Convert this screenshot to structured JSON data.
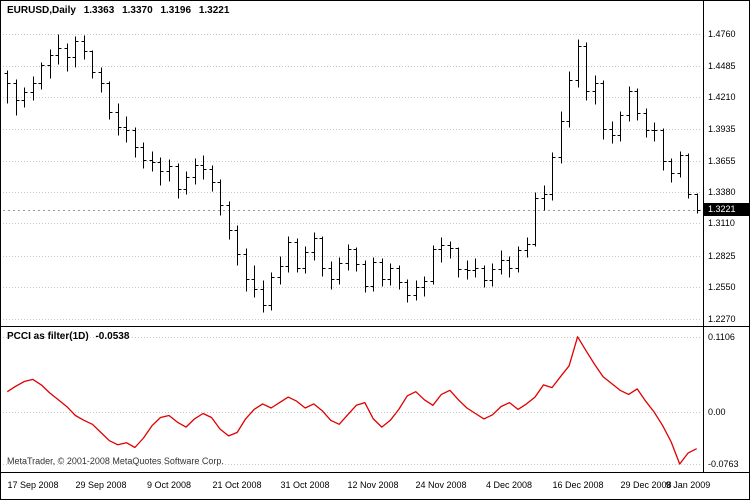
{
  "header": {
    "symbol_period": "EURUSD,Daily",
    "open": "1.3363",
    "high": "1.3370",
    "low": "1.3196",
    "close": "1.3221"
  },
  "indicator": {
    "name": "PCCI as filter(1D)",
    "value": "-0.0538",
    "axis_labels": [
      "0.1106",
      "0.00",
      "-0.0763"
    ]
  },
  "price_axis": {
    "labels": [
      "1.4760",
      "1.4485",
      "1.4210",
      "1.3935",
      "1.3655",
      "1.3380",
      "1.3110",
      "1.2825",
      "1.2550",
      "1.2270"
    ],
    "current": "1.3221"
  },
  "watermark": "MetaTrader, © 2001-2008 MetaQuotes Software Corp.",
  "colors": {
    "bar": "#000000",
    "indicator_line": "#e00000",
    "grid": "#c8c8c8",
    "separator": "#000000",
    "current_price_line": "#999999",
    "price_tag_bg": "#000000",
    "price_tag_fg": "#ffffff",
    "background": "#ffffff"
  },
  "chart_data": [
    {
      "panel": "price",
      "type": "ohlc-bars",
      "symbol": "EURUSD",
      "timeframe": "Daily",
      "grid": true,
      "legend": false,
      "ylim": [
        1.221,
        1.504
      ],
      "y_ticks": [
        1.476,
        1.4485,
        1.421,
        1.3935,
        1.3655,
        1.338,
        1.311,
        1.2825,
        1.255,
        1.227
      ],
      "current_price": 1.3221,
      "x_tick_labels": [
        "17 Sep 2008",
        "29 Sep 2008",
        "9 Oct 2008",
        "21 Oct 2008",
        "31 Oct 2008",
        "12 Nov 2008",
        "24 Nov 2008",
        "4 Dec 2008",
        "16 Dec 2008",
        "29 Dec 2008",
        "9 Jan 2009"
      ],
      "x_tick_indices": [
        3,
        11,
        19,
        27,
        35,
        43,
        51,
        59,
        67,
        75,
        80
      ],
      "bars": [
        [
          1.442,
          1.445,
          1.416,
          1.433
        ],
        [
          1.433,
          1.437,
          1.405,
          1.418
        ],
        [
          1.418,
          1.43,
          1.412,
          1.425
        ],
        [
          1.425,
          1.439,
          1.418,
          1.433
        ],
        [
          1.433,
          1.452,
          1.428,
          1.449
        ],
        [
          1.449,
          1.463,
          1.438,
          1.458
        ],
        [
          1.458,
          1.476,
          1.45,
          1.464
        ],
        [
          1.464,
          1.468,
          1.444,
          1.456
        ],
        [
          1.456,
          1.474,
          1.447,
          1.47
        ],
        [
          1.47,
          1.475,
          1.454,
          1.461
        ],
        [
          1.461,
          1.462,
          1.438,
          1.443
        ],
        [
          1.443,
          1.447,
          1.425,
          1.433
        ],
        [
          1.433,
          1.435,
          1.402,
          1.408
        ],
        [
          1.408,
          1.416,
          1.388,
          1.395
        ],
        [
          1.395,
          1.404,
          1.382,
          1.392
        ],
        [
          1.392,
          1.395,
          1.369,
          1.377
        ],
        [
          1.377,
          1.382,
          1.359,
          1.366
        ],
        [
          1.366,
          1.374,
          1.356,
          1.364
        ],
        [
          1.364,
          1.369,
          1.344,
          1.356
        ],
        [
          1.356,
          1.367,
          1.348,
          1.361
        ],
        [
          1.361,
          1.363,
          1.333,
          1.341
        ],
        [
          1.341,
          1.356,
          1.336,
          1.351
        ],
        [
          1.351,
          1.368,
          1.345,
          1.362
        ],
        [
          1.362,
          1.37,
          1.349,
          1.358
        ],
        [
          1.358,
          1.362,
          1.339,
          1.347
        ],
        [
          1.347,
          1.349,
          1.318,
          1.327
        ],
        [
          1.327,
          1.33,
          1.297,
          1.305
        ],
        [
          1.305,
          1.309,
          1.274,
          1.284
        ],
        [
          1.284,
          1.289,
          1.252,
          1.262
        ],
        [
          1.262,
          1.274,
          1.246,
          1.253
        ],
        [
          1.253,
          1.261,
          1.233,
          1.239
        ],
        [
          1.239,
          1.268,
          1.235,
          1.264
        ],
        [
          1.264,
          1.282,
          1.258,
          1.273
        ],
        [
          1.273,
          1.3,
          1.268,
          1.294
        ],
        [
          1.294,
          1.298,
          1.268,
          1.272
        ],
        [
          1.272,
          1.291,
          1.267,
          1.286
        ],
        [
          1.286,
          1.303,
          1.279,
          1.298
        ],
        [
          1.298,
          1.3,
          1.265,
          1.272
        ],
        [
          1.272,
          1.278,
          1.253,
          1.262
        ],
        [
          1.262,
          1.281,
          1.258,
          1.276
        ],
        [
          1.276,
          1.293,
          1.27,
          1.288
        ],
        [
          1.288,
          1.29,
          1.269,
          1.275
        ],
        [
          1.275,
          1.279,
          1.251,
          1.256
        ],
        [
          1.256,
          1.281,
          1.252,
          1.277
        ],
        [
          1.277,
          1.28,
          1.256,
          1.262
        ],
        [
          1.262,
          1.276,
          1.257,
          1.272
        ],
        [
          1.272,
          1.274,
          1.253,
          1.259
        ],
        [
          1.259,
          1.262,
          1.242,
          1.248
        ],
        [
          1.248,
          1.261,
          1.244,
          1.255
        ],
        [
          1.255,
          1.265,
          1.247,
          1.26
        ],
        [
          1.26,
          1.292,
          1.258,
          1.288
        ],
        [
          1.288,
          1.299,
          1.277,
          1.292
        ],
        [
          1.292,
          1.295,
          1.28,
          1.289
        ],
        [
          1.289,
          1.29,
          1.264,
          1.271
        ],
        [
          1.271,
          1.279,
          1.262,
          1.27
        ],
        [
          1.27,
          1.28,
          1.264,
          1.272
        ],
        [
          1.272,
          1.274,
          1.255,
          1.261
        ],
        [
          1.261,
          1.276,
          1.256,
          1.271
        ],
        [
          1.271,
          1.287,
          1.266,
          1.279
        ],
        [
          1.279,
          1.282,
          1.264,
          1.272
        ],
        [
          1.272,
          1.291,
          1.268,
          1.287
        ],
        [
          1.287,
          1.299,
          1.281,
          1.293
        ],
        [
          1.293,
          1.338,
          1.291,
          1.333
        ],
        [
          1.333,
          1.344,
          1.322,
          1.336
        ],
        [
          1.336,
          1.373,
          1.331,
          1.369
        ],
        [
          1.369,
          1.409,
          1.363,
          1.4
        ],
        [
          1.4,
          1.444,
          1.395,
          1.436
        ],
        [
          1.436,
          1.4719,
          1.43,
          1.466
        ],
        [
          1.466,
          1.469,
          1.418,
          1.426
        ],
        [
          1.426,
          1.44,
          1.415,
          1.433
        ],
        [
          1.433,
          1.436,
          1.384,
          1.393
        ],
        [
          1.393,
          1.4,
          1.381,
          1.388
        ],
        [
          1.388,
          1.409,
          1.383,
          1.405
        ],
        [
          1.405,
          1.431,
          1.4,
          1.426
        ],
        [
          1.426,
          1.429,
          1.401,
          1.407
        ],
        [
          1.407,
          1.411,
          1.386,
          1.392
        ],
        [
          1.392,
          1.399,
          1.383,
          1.392
        ],
        [
          1.392,
          1.394,
          1.357,
          1.365
        ],
        [
          1.365,
          1.368,
          1.347,
          1.355
        ],
        [
          1.355,
          1.374,
          1.351,
          1.37
        ],
        [
          1.37,
          1.372,
          1.333,
          1.3365
        ],
        [
          1.3363,
          1.337,
          1.3196,
          1.3221
        ]
      ]
    },
    {
      "panel": "indicator",
      "type": "line",
      "title": "PCCI as filter(1D)",
      "current_value": -0.0538,
      "grid": true,
      "legend": false,
      "ylim": [
        -0.088,
        0.125
      ],
      "y_ticks": [
        0.1106,
        0,
        -0.0763
      ],
      "values": [
        0.03,
        0.038,
        0.045,
        0.048,
        0.04,
        0.028,
        0.018,
        0.008,
        -0.005,
        -0.012,
        -0.018,
        -0.03,
        -0.042,
        -0.048,
        -0.045,
        -0.052,
        -0.038,
        -0.02,
        -0.008,
        -0.005,
        -0.015,
        -0.022,
        -0.01,
        -0.002,
        -0.008,
        -0.025,
        -0.035,
        -0.03,
        -0.01,
        0.004,
        0.012,
        0.006,
        0.014,
        0.022,
        0.016,
        0.006,
        0.012,
        0.002,
        -0.012,
        -0.018,
        -0.004,
        0.01,
        0.014,
        -0.01,
        -0.022,
        -0.012,
        0.004,
        0.024,
        0.03,
        0.018,
        0.01,
        0.026,
        0.032,
        0.018,
        0.006,
        -0.002,
        -0.01,
        -0.004,
        0.008,
        0.014,
        0.004,
        0.012,
        0.022,
        0.04,
        0.036,
        0.052,
        0.068,
        0.1106,
        0.09,
        0.07,
        0.052,
        0.042,
        0.032,
        0.026,
        0.034,
        0.016,
        0.0,
        -0.02,
        -0.044,
        -0.0763,
        -0.06,
        -0.0538
      ]
    }
  ]
}
